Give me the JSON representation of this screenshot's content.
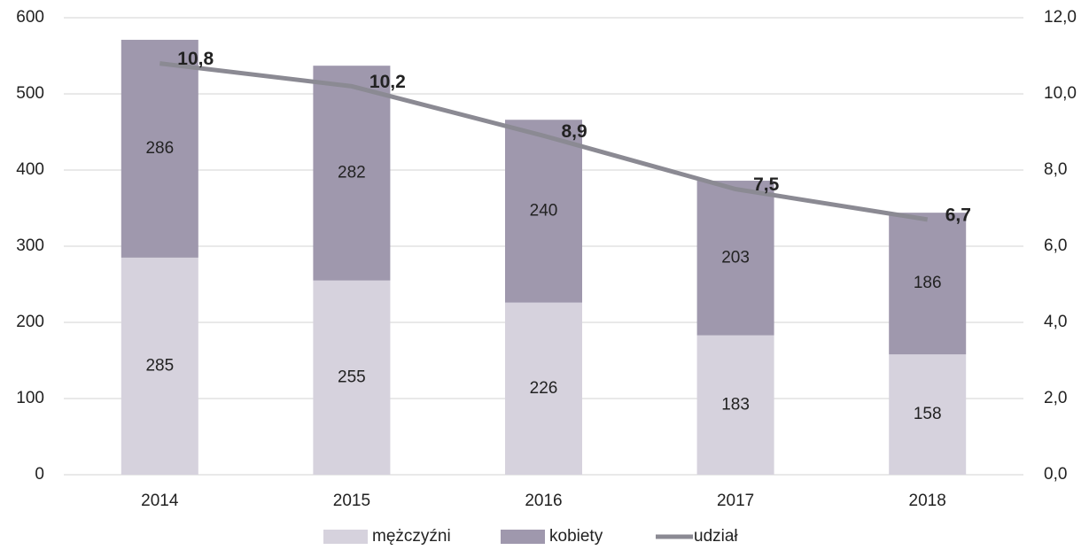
{
  "chart_data": {
    "type": "bar",
    "categories": [
      "2014",
      "2015",
      "2016",
      "2017",
      "2018"
    ],
    "series": [
      {
        "name": "mężczyźni",
        "color": "#d6d2dd",
        "values": [
          285,
          255,
          226,
          183,
          158
        ]
      },
      {
        "name": "kobiety",
        "color": "#9f98ad",
        "values": [
          286,
          282,
          240,
          203,
          186
        ]
      },
      {
        "name": "udział",
        "color": "#8b8a93",
        "axis": "y2",
        "type": "line",
        "values": [
          10.8,
          10.2,
          8.9,
          7.5,
          6.7
        ],
        "value_labels": [
          "10,8",
          "10,2",
          "8,9",
          "7,5",
          "6,7"
        ]
      }
    ],
    "stacked": true,
    "ylim": [
      0,
      600
    ],
    "yticks": [
      0,
      100,
      200,
      300,
      400,
      500,
      600
    ],
    "y2lim": [
      0,
      12
    ],
    "y2ticks": [
      {
        "value": 0,
        "label": "0,0"
      },
      {
        "value": 2,
        "label": "2,0"
      },
      {
        "value": 4,
        "label": "4,0"
      },
      {
        "value": 6,
        "label": "6,0"
      },
      {
        "value": 8,
        "label": "8,0"
      },
      {
        "value": 10,
        "label": "10,0"
      },
      {
        "value": 12,
        "label": "12,0"
      }
    ],
    "grid": true,
    "legend": "bottom"
  }
}
